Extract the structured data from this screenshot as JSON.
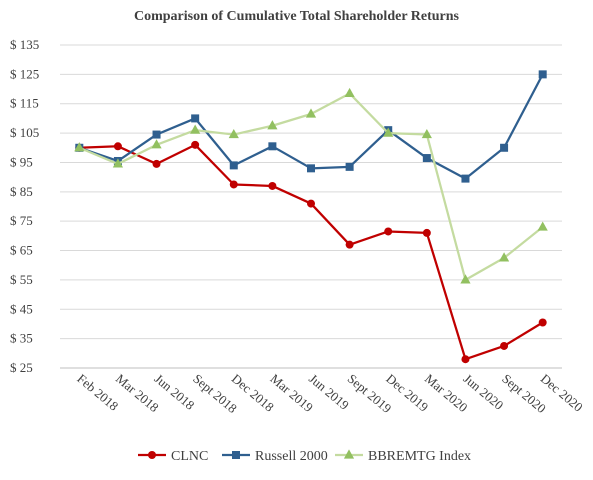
{
  "chart_data": {
    "type": "line",
    "title": "Comparison of Cumulative Total Shareholder Returns",
    "xlabel": "",
    "ylabel": "",
    "categories": [
      "Feb 2018",
      "Mar 2018",
      "Jun 2018",
      "Sept 2018",
      "Dec 2018",
      "Mar 2019",
      "Jun 2019",
      "Sept 2019",
      "Dec 2019",
      "Mar 2020",
      "Jun 2020",
      "Sept 2020",
      "Dec 2020"
    ],
    "y_ticks": [
      "$ 25",
      "$ 35",
      "$ 45",
      "$ 55",
      "$ 65",
      "$ 75",
      "$ 85",
      "$ 95",
      "$ 105",
      "$ 115",
      "$ 125",
      "$ 135"
    ],
    "ylim": [
      25,
      135
    ],
    "grid": true,
    "legend_position": "bottom",
    "series": [
      {
        "name": "CLNC",
        "color": "#c00000",
        "marker": "circle",
        "values": [
          100,
          100.5,
          94.5,
          101,
          87.5,
          87,
          81,
          67,
          71.5,
          71,
          28,
          32.5,
          40.5
        ]
      },
      {
        "name": "Russell 2000",
        "color": "#2f5f8f",
        "marker": "square",
        "values": [
          100,
          95.5,
          104.5,
          110,
          94,
          100.5,
          93,
          93.5,
          106,
          96.5,
          89.5,
          100,
          125
        ]
      },
      {
        "name": "BBREMTG Index",
        "color": "#c4dba0",
        "marker": "triangle",
        "marker_color": "#92c060",
        "values": [
          100,
          94.5,
          101,
          106,
          104.5,
          107.5,
          111.5,
          118.5,
          105,
          104.5,
          55,
          62.5,
          73
        ]
      }
    ]
  }
}
